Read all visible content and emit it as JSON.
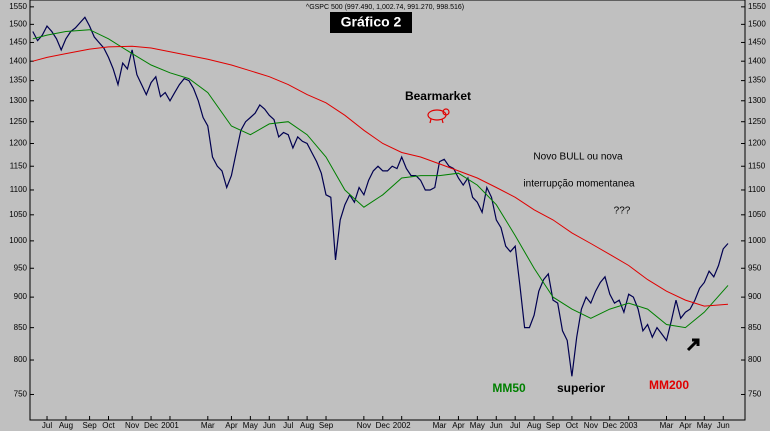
{
  "chart_data": {
    "type": "line",
    "header": "^GSPC 500 (997.490, 1,002.74, 991.270, 998.516)",
    "title": "Gráfico 2",
    "log_scale": true,
    "ylim": [
      715,
      1570
    ],
    "yticks": [
      1550,
      1500,
      1450,
      1400,
      1350,
      1300,
      1250,
      1200,
      1150,
      1100,
      1050,
      1000,
      950,
      900,
      850,
      {
        "value": 800,
        "label": "800"
      },
      750
    ],
    "xlim": [
      -0.6,
      150.6
    ],
    "xticks": [
      {
        "value": 3,
        "label": "Jul"
      },
      {
        "value": 7,
        "label": "Aug"
      },
      {
        "value": 12,
        "label": "Sep"
      },
      {
        "value": 16,
        "label": "Oct"
      },
      {
        "value": 21,
        "label": "Nov"
      },
      {
        "value": 25,
        "label": "Dec"
      },
      {
        "value": 29,
        "label": "2001"
      },
      {
        "value": 37,
        "label": "Mar"
      },
      {
        "value": 42,
        "label": "Apr"
      },
      {
        "value": 46,
        "label": "May"
      },
      {
        "value": 50,
        "label": "Jun"
      },
      {
        "value": 54,
        "label": "Jul"
      },
      {
        "value": 58,
        "label": "Aug"
      },
      {
        "value": 62,
        "label": "Sep"
      },
      {
        "value": 70,
        "label": "Nov"
      },
      {
        "value": 74,
        "label": "Dec"
      },
      {
        "value": 78,
        "label": "2002"
      },
      {
        "value": 86,
        "label": "Mar"
      },
      {
        "value": 90,
        "label": "Apr"
      },
      {
        "value": 94,
        "label": "May"
      },
      {
        "value": 98,
        "label": "Jun"
      },
      {
        "value": 102,
        "label": "Jul"
      },
      {
        "value": 106,
        "label": "Aug"
      },
      {
        "value": 110,
        "label": "Sep"
      },
      {
        "value": 114,
        "label": "Oct"
      },
      {
        "value": 118,
        "label": "Nov"
      },
      {
        "value": 122,
        "label": "Dec"
      },
      {
        "value": 126,
        "label": "2003"
      },
      {
        "value": 134,
        "label": "Mar"
      },
      {
        "value": 138,
        "label": "Apr"
      },
      {
        "value": 142,
        "label": "May"
      },
      {
        "value": 146,
        "label": "Jun"
      }
    ],
    "series": [
      {
        "color": "#000050",
        "values": [
          1480,
          1455,
          1470,
          1495,
          1480,
          1460,
          1430,
          1460,
          1480,
          1490,
          1505,
          1520,
          1495,
          1465,
          1450,
          1435,
          1410,
          1380,
          1340,
          1395,
          1380,
          1430,
          1365,
          1340,
          1315,
          1345,
          1360,
          1310,
          1320,
          1300,
          1320,
          1340,
          1355,
          1350,
          1330,
          1300,
          1260,
          1240,
          1170,
          1150,
          1140,
          1105,
          1130,
          1180,
          1230,
          1250,
          1260,
          1270,
          1290,
          1280,
          1265,
          1255,
          1215,
          1225,
          1220,
          1190,
          1215,
          1205,
          1200,
          1180,
          1160,
          1135,
          1090,
          1085,
          965,
          1040,
          1070,
          1090,
          1075,
          1105,
          1090,
          1120,
          1140,
          1150,
          1140,
          1140,
          1150,
          1145,
          1170,
          1145,
          1130,
          1130,
          1120,
          1100,
          1100,
          1105,
          1160,
          1165,
          1150,
          1145,
          1125,
          1110,
          1125,
          1085,
          1075,
          1055,
          1105,
          1085,
          1040,
          1025,
          990,
          980,
          990,
          920,
          850,
          850,
          870,
          910,
          930,
          940,
          895,
          890,
          845,
          830,
          776,
          835,
          880,
          900,
          890,
          910,
          925,
          935,
          905,
          890,
          895,
          875,
          905,
          900,
          880,
          845,
          855,
          835,
          850,
          840,
          830,
          860,
          895,
          865,
          875,
          880,
          895,
          915,
          925,
          945,
          935,
          955,
          985,
          995
        ]
      },
      {
        "color": "#008000",
        "x": [
          0,
          3,
          7,
          12,
          16,
          21,
          25,
          29,
          33,
          37,
          42,
          46,
          50,
          54,
          58,
          62,
          66,
          70,
          74,
          78,
          82,
          86,
          90,
          94,
          98,
          102,
          106,
          110,
          114,
          118,
          122,
          126,
          130,
          134,
          138,
          142,
          147
        ],
        "values": [
          1460,
          1470,
          1480,
          1485,
          1460,
          1420,
          1390,
          1370,
          1355,
          1320,
          1240,
          1220,
          1245,
          1250,
          1220,
          1170,
          1100,
          1065,
          1090,
          1125,
          1130,
          1130,
          1135,
          1110,
          1070,
          1010,
          950,
          900,
          880,
          865,
          880,
          890,
          880,
          855,
          850,
          875,
          920
        ]
      },
      {
        "color": "#e00000",
        "x": [
          0,
          3,
          7,
          12,
          16,
          21,
          25,
          29,
          33,
          37,
          42,
          46,
          50,
          54,
          58,
          62,
          66,
          70,
          74,
          78,
          82,
          86,
          90,
          94,
          98,
          102,
          106,
          110,
          114,
          118,
          122,
          126,
          130,
          134,
          138,
          142,
          147
        ],
        "values": [
          1400,
          1410,
          1420,
          1432,
          1438,
          1440,
          1435,
          1425,
          1415,
          1405,
          1390,
          1375,
          1360,
          1340,
          1315,
          1295,
          1265,
          1230,
          1200,
          1180,
          1170,
          1155,
          1140,
          1125,
          1105,
          1085,
          1060,
          1040,
          1015,
          995,
          975,
          955,
          930,
          910,
          895,
          885,
          888
        ]
      }
    ],
    "annotations": [
      "Bearmarket",
      "Novo BULL ou nova",
      "interrupção momentanea",
      "???",
      "MM50",
      "superior",
      "MM200"
    ]
  }
}
